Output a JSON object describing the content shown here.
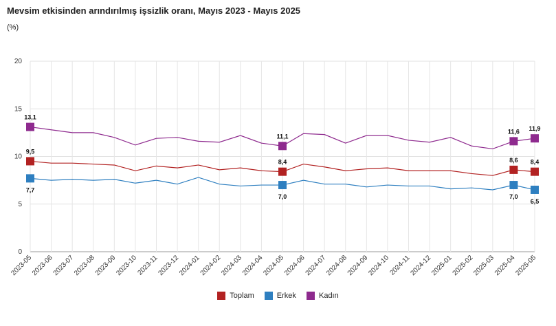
{
  "chart_data": {
    "type": "line",
    "title": "Mevsim etkisinden arındırılmış işsizlik oranı, Mayıs 2023 - Mayıs 2025",
    "unit": "(%)",
    "ylim": [
      0,
      20
    ],
    "yticks": [
      "0",
      "5",
      "10",
      "15",
      "20"
    ],
    "categories": [
      "2023-05",
      "2023-06",
      "2023-07",
      "2023-08",
      "2023-09",
      "2023-10",
      "2023-11",
      "2023-12",
      "2024-01",
      "2024-02",
      "2024-03",
      "2024-04",
      "2024-05",
      "2024-06",
      "2024-07",
      "2024-08",
      "2024-09",
      "2024-10",
      "2024-11",
      "2024-12",
      "2025-01",
      "2025-02",
      "2025-03",
      "2025-04",
      "2025-05"
    ],
    "series": [
      {
        "name": "Toplam",
        "color": "#b22222",
        "values": [
          9.5,
          9.3,
          9.3,
          9.2,
          9.1,
          8.5,
          9.0,
          8.8,
          9.1,
          8.6,
          8.8,
          8.5,
          8.4,
          9.2,
          8.9,
          8.5,
          8.7,
          8.8,
          8.5,
          8.5,
          8.5,
          8.2,
          8.0,
          8.6,
          8.4
        ],
        "labels": [
          {
            "i": 0,
            "text": "9,5",
            "pos": "above"
          },
          {
            "i": 12,
            "text": "8,4",
            "pos": "above"
          },
          {
            "i": 23,
            "text": "8,6",
            "pos": "above"
          },
          {
            "i": 24,
            "text": "8,4",
            "pos": "above"
          }
        ]
      },
      {
        "name": "Erkek",
        "color": "#2e7fc0",
        "values": [
          7.7,
          7.5,
          7.6,
          7.5,
          7.6,
          7.2,
          7.5,
          7.1,
          7.8,
          7.1,
          6.9,
          7.0,
          7.0,
          7.5,
          7.1,
          7.1,
          6.8,
          7.0,
          6.9,
          6.9,
          6.6,
          6.7,
          6.5,
          7.0,
          6.5
        ],
        "labels": [
          {
            "i": 0,
            "text": "7,7",
            "pos": "below"
          },
          {
            "i": 12,
            "text": "7,0",
            "pos": "below"
          },
          {
            "i": 23,
            "text": "7,0",
            "pos": "below"
          },
          {
            "i": 24,
            "text": "6,5",
            "pos": "below"
          }
        ]
      },
      {
        "name": "Kadın",
        "color": "#8e2a8e",
        "values": [
          13.1,
          12.8,
          12.5,
          12.5,
          12.0,
          11.2,
          11.9,
          12.0,
          11.6,
          11.5,
          12.2,
          11.4,
          11.1,
          12.4,
          12.3,
          11.4,
          12.2,
          12.2,
          11.7,
          11.5,
          12.0,
          11.1,
          10.8,
          11.6,
          11.9
        ],
        "labels": [
          {
            "i": 0,
            "text": "13,1",
            "pos": "above"
          },
          {
            "i": 12,
            "text": "11,1",
            "pos": "above"
          },
          {
            "i": 23,
            "text": "11,6",
            "pos": "above"
          },
          {
            "i": 24,
            "text": "11,9",
            "pos": "above"
          }
        ]
      }
    ],
    "legend_position": "bottom-center",
    "grid": true
  }
}
